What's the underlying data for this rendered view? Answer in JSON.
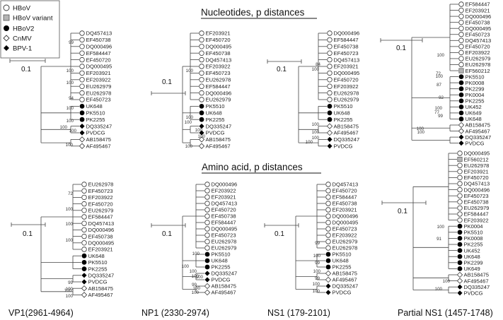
{
  "legend": [
    {
      "label": "HBoV",
      "marker": "circle-open"
    },
    {
      "label": "HBoV variant",
      "marker": "square-gray"
    },
    {
      "label": "HBoV2",
      "marker": "circle-filled"
    },
    {
      "label": "CnMV",
      "marker": "diamond-open"
    },
    {
      "label": "BPV-1",
      "marker": "diamond-filled"
    }
  ],
  "section_titles": {
    "nucleotide": "Nucleotides, p distances",
    "amino": "Amino acid, p distances"
  },
  "columns": [
    "VP1(2961-4964)",
    "NP1 (2330-2974)",
    "NS1 (179-2101)",
    "Partial NS1 (1457-1748)"
  ],
  "scale_label": "0.1",
  "trees": [
    {
      "id": "vp1-nt",
      "leaves": [
        {
          "label": "DQ457413",
          "marker": "circle-open"
        },
        {
          "label": "EF450738",
          "marker": "circle-open"
        },
        {
          "label": "DQ000496",
          "marker": "circle-open"
        },
        {
          "label": "EF584447",
          "marker": "circle-open"
        },
        {
          "label": "EF450720",
          "marker": "circle-open"
        },
        {
          "label": "DQ000495",
          "marker": "circle-open"
        },
        {
          "label": "EF203921",
          "marker": "circle-open"
        },
        {
          "label": "EF203922",
          "marker": "circle-open"
        },
        {
          "label": "EU262979",
          "marker": "circle-open"
        },
        {
          "label": "EU262978",
          "marker": "circle-open"
        },
        {
          "label": "EF450723",
          "marker": "circle-open"
        },
        {
          "label": "UK648",
          "marker": "circle-filled"
        },
        {
          "label": "PK5510",
          "marker": "circle-filled"
        },
        {
          "label": "PK2255",
          "marker": "circle-filled"
        },
        {
          "label": "DQ335247",
          "marker": "diamond-filled"
        },
        {
          "label": "PVDCG",
          "marker": "diamond-filled"
        },
        {
          "label": "AB158475",
          "marker": "diamond-open"
        },
        {
          "label": "AF495467",
          "marker": "diamond-open"
        }
      ],
      "bootstraps": [
        "99",
        "100",
        "100",
        "94",
        "100",
        "100",
        "100",
        "100",
        "100"
      ]
    },
    {
      "id": "np1-nt",
      "leaves": [
        {
          "label": "EF203921",
          "marker": "circle-open"
        },
        {
          "label": "EF450720",
          "marker": "circle-open"
        },
        {
          "label": "DQ000495",
          "marker": "circle-open"
        },
        {
          "label": "EF450738",
          "marker": "circle-open"
        },
        {
          "label": "DQ457413",
          "marker": "circle-open"
        },
        {
          "label": "EF203922",
          "marker": "circle-open"
        },
        {
          "label": "EF450723",
          "marker": "circle-open"
        },
        {
          "label": "EU262978",
          "marker": "circle-open"
        },
        {
          "label": "EF584447",
          "marker": "circle-open"
        },
        {
          "label": "DQ000496",
          "marker": "circle-open"
        },
        {
          "label": "EU262979",
          "marker": "circle-open"
        },
        {
          "label": "PK5510",
          "marker": "circle-filled"
        },
        {
          "label": "UK648",
          "marker": "circle-filled"
        },
        {
          "label": "PK2255",
          "marker": "circle-filled"
        },
        {
          "label": "DQ335247",
          "marker": "diamond-filled"
        },
        {
          "label": "PVDCG",
          "marker": "diamond-filled"
        },
        {
          "label": "AB158475",
          "marker": "diamond-open"
        },
        {
          "label": "AF495467",
          "marker": "diamond-open"
        }
      ],
      "bootstraps": [
        "100",
        "100",
        "100",
        "100",
        "100",
        "100"
      ]
    },
    {
      "id": "ns1-nt",
      "leaves": [
        {
          "label": "DQ000496",
          "marker": "circle-open"
        },
        {
          "label": "EF584447",
          "marker": "circle-open"
        },
        {
          "label": "EF450738",
          "marker": "circle-open"
        },
        {
          "label": "EF450723",
          "marker": "circle-open"
        },
        {
          "label": "DQ457413",
          "marker": "circle-open"
        },
        {
          "label": "EF203921",
          "marker": "circle-open"
        },
        {
          "label": "DQ000495",
          "marker": "circle-open"
        },
        {
          "label": "EF450720",
          "marker": "circle-open"
        },
        {
          "label": "EF203922",
          "marker": "circle-open"
        },
        {
          "label": "EU262978",
          "marker": "circle-open"
        },
        {
          "label": "EU262979",
          "marker": "circle-open"
        },
        {
          "label": "PK5510",
          "marker": "circle-filled"
        },
        {
          "label": "UK648",
          "marker": "circle-filled"
        },
        {
          "label": "PK2255",
          "marker": "circle-filled"
        },
        {
          "label": "AB158475",
          "marker": "diamond-open"
        },
        {
          "label": "AF495467",
          "marker": "diamond-open"
        },
        {
          "label": "DQ335247",
          "marker": "diamond-filled"
        },
        {
          "label": "PVDCG",
          "marker": "diamond-filled"
        }
      ],
      "bootstraps": [
        "84",
        "100",
        "100",
        "100",
        "100",
        "100"
      ]
    },
    {
      "id": "pns1-nt",
      "leaves": [
        {
          "label": "EF584447",
          "marker": "circle-open"
        },
        {
          "label": "EF203921",
          "marker": "circle-open"
        },
        {
          "label": "DQ000496",
          "marker": "circle-open"
        },
        {
          "label": "EF450738",
          "marker": "circle-open"
        },
        {
          "label": "DQ000495",
          "marker": "circle-open"
        },
        {
          "label": "EF450723",
          "marker": "circle-open"
        },
        {
          "label": "DQ457413",
          "marker": "circle-open"
        },
        {
          "label": "EF450720",
          "marker": "circle-open"
        },
        {
          "label": "EF203922",
          "marker": "circle-open"
        },
        {
          "label": "EU262979",
          "marker": "circle-open"
        },
        {
          "label": "EU262978",
          "marker": "circle-open"
        },
        {
          "label": "EF560212",
          "marker": "square-gray"
        },
        {
          "label": "PK5510",
          "marker": "circle-filled"
        },
        {
          "label": "PK0008",
          "marker": "circle-filled"
        },
        {
          "label": "PK2299",
          "marker": "circle-filled"
        },
        {
          "label": "PK0004",
          "marker": "circle-filled"
        },
        {
          "label": "PK2255",
          "marker": "circle-filled"
        },
        {
          "label": "UK452",
          "marker": "circle-filled"
        },
        {
          "label": "UK649",
          "marker": "circle-filled"
        },
        {
          "label": "UK648",
          "marker": "circle-filled"
        },
        {
          "label": "AB158475",
          "marker": "diamond-open"
        },
        {
          "label": "AF495467",
          "marker": "diamond-open"
        },
        {
          "label": "DQ335247",
          "marker": "diamond-filled"
        },
        {
          "label": "PVDCG",
          "marker": "diamond-filled"
        }
      ],
      "bootstraps": [
        "100",
        "72",
        "100",
        "87",
        "92",
        "100",
        "77",
        "99",
        "100",
        "100"
      ]
    },
    {
      "id": "vp1-aa",
      "leaves": [
        {
          "label": "EU262978",
          "marker": "circle-open"
        },
        {
          "label": "EF450723",
          "marker": "circle-open"
        },
        {
          "label": "EF203922",
          "marker": "circle-open"
        },
        {
          "label": "EF450720",
          "marker": "circle-open"
        },
        {
          "label": "EU262979",
          "marker": "circle-open"
        },
        {
          "label": "EF584447",
          "marker": "circle-open"
        },
        {
          "label": "DQ457413",
          "marker": "circle-open"
        },
        {
          "label": "DQ000496",
          "marker": "circle-open"
        },
        {
          "label": "EF450738",
          "marker": "circle-open"
        },
        {
          "label": "DQ000495",
          "marker": "circle-open"
        },
        {
          "label": "EF203921",
          "marker": "circle-open"
        },
        {
          "label": "UK648",
          "marker": "circle-filled"
        },
        {
          "label": "PK5510",
          "marker": "circle-filled"
        },
        {
          "label": "PK2255",
          "marker": "circle-filled"
        },
        {
          "label": "DQ335247",
          "marker": "diamond-filled"
        },
        {
          "label": "PVDCG",
          "marker": "diamond-filled"
        },
        {
          "label": "AB158475",
          "marker": "diamond-open"
        },
        {
          "label": "AF495467",
          "marker": "diamond-open"
        }
      ],
      "bootstraps": [
        "72",
        "100",
        "100",
        "100",
        "99",
        "100",
        "100",
        "100"
      ]
    },
    {
      "id": "np1-aa",
      "leaves": [
        {
          "label": "DQ000496",
          "marker": "circle-open"
        },
        {
          "label": "EF203922",
          "marker": "circle-open"
        },
        {
          "label": "EF203921",
          "marker": "circle-open"
        },
        {
          "label": "DQ457413",
          "marker": "circle-open"
        },
        {
          "label": "EF450720",
          "marker": "circle-open"
        },
        {
          "label": "EF450738",
          "marker": "circle-open"
        },
        {
          "label": "EF584447",
          "marker": "circle-open"
        },
        {
          "label": "DQ000495",
          "marker": "circle-open"
        },
        {
          "label": "EF450723",
          "marker": "circle-open"
        },
        {
          "label": "EU262978",
          "marker": "circle-open"
        },
        {
          "label": "EU262979",
          "marker": "circle-open"
        },
        {
          "label": "PK5510",
          "marker": "circle-filled"
        },
        {
          "label": "UK648",
          "marker": "circle-filled"
        },
        {
          "label": "PK2255",
          "marker": "circle-filled"
        },
        {
          "label": "DQ335247",
          "marker": "diamond-filled"
        },
        {
          "label": "PVDCG",
          "marker": "diamond-filled"
        },
        {
          "label": "AB158475",
          "marker": "diamond-open"
        },
        {
          "label": "AF495467",
          "marker": "diamond-open"
        }
      ],
      "bootstraps": [
        "100",
        "100",
        "100",
        "100",
        "100",
        "99",
        "100",
        "100"
      ]
    },
    {
      "id": "ns1-aa",
      "leaves": [
        {
          "label": "DQ457413",
          "marker": "circle-open"
        },
        {
          "label": "EF450720",
          "marker": "circle-open"
        },
        {
          "label": "EF584447",
          "marker": "circle-open"
        },
        {
          "label": "EF450738",
          "marker": "circle-open"
        },
        {
          "label": "EF203921",
          "marker": "circle-open"
        },
        {
          "label": "DQ000496",
          "marker": "circle-open"
        },
        {
          "label": "DQ000495",
          "marker": "circle-open"
        },
        {
          "label": "EF450723",
          "marker": "circle-open"
        },
        {
          "label": "EF203922",
          "marker": "circle-open"
        },
        {
          "label": "EU262979",
          "marker": "circle-open"
        },
        {
          "label": "EU262978",
          "marker": "circle-open"
        },
        {
          "label": "PK5510",
          "marker": "circle-filled"
        },
        {
          "label": "UK648",
          "marker": "circle-filled"
        },
        {
          "label": "PK2255",
          "marker": "circle-filled"
        },
        {
          "label": "AB158475",
          "marker": "diamond-open"
        },
        {
          "label": "AF495467",
          "marker": "diamond-open"
        },
        {
          "label": "DQ335247",
          "marker": "diamond-filled"
        },
        {
          "label": "PVDCG",
          "marker": "diamond-filled"
        }
      ],
      "bootstraps": [
        "99",
        "100",
        "99",
        "100",
        "99",
        "100",
        "100"
      ]
    },
    {
      "id": "pns1-aa",
      "leaves": [
        {
          "label": "DQ000495",
          "marker": "circle-open"
        },
        {
          "label": "EF560212",
          "marker": "square-gray"
        },
        {
          "label": "EU262978",
          "marker": "circle-open"
        },
        {
          "label": "EF203921",
          "marker": "circle-open"
        },
        {
          "label": "EF450720",
          "marker": "circle-open"
        },
        {
          "label": "DQ457413",
          "marker": "circle-open"
        },
        {
          "label": "DQ000496",
          "marker": "circle-open"
        },
        {
          "label": "EF450723",
          "marker": "circle-open"
        },
        {
          "label": "EF450738",
          "marker": "circle-open"
        },
        {
          "label": "EU262979",
          "marker": "circle-open"
        },
        {
          "label": "EF584447",
          "marker": "circle-open"
        },
        {
          "label": "EF203922",
          "marker": "circle-open"
        },
        {
          "label": "PK0004",
          "marker": "circle-filled"
        },
        {
          "label": "PK5510",
          "marker": "circle-filled"
        },
        {
          "label": "PK0008",
          "marker": "circle-filled"
        },
        {
          "label": "PK2255",
          "marker": "circle-filled"
        },
        {
          "label": "UK452",
          "marker": "circle-filled"
        },
        {
          "label": "UK648",
          "marker": "circle-filled"
        },
        {
          "label": "PK2299",
          "marker": "circle-filled"
        },
        {
          "label": "UK649",
          "marker": "circle-filled"
        },
        {
          "label": "AB158475",
          "marker": "diamond-open"
        },
        {
          "label": "AF495467",
          "marker": "diamond-open"
        },
        {
          "label": "DQ335247",
          "marker": "diamond-filled"
        },
        {
          "label": "PVDCG",
          "marker": "diamond-filled"
        }
      ],
      "bootstraps": [
        "100",
        "91",
        "100",
        "100"
      ]
    }
  ]
}
